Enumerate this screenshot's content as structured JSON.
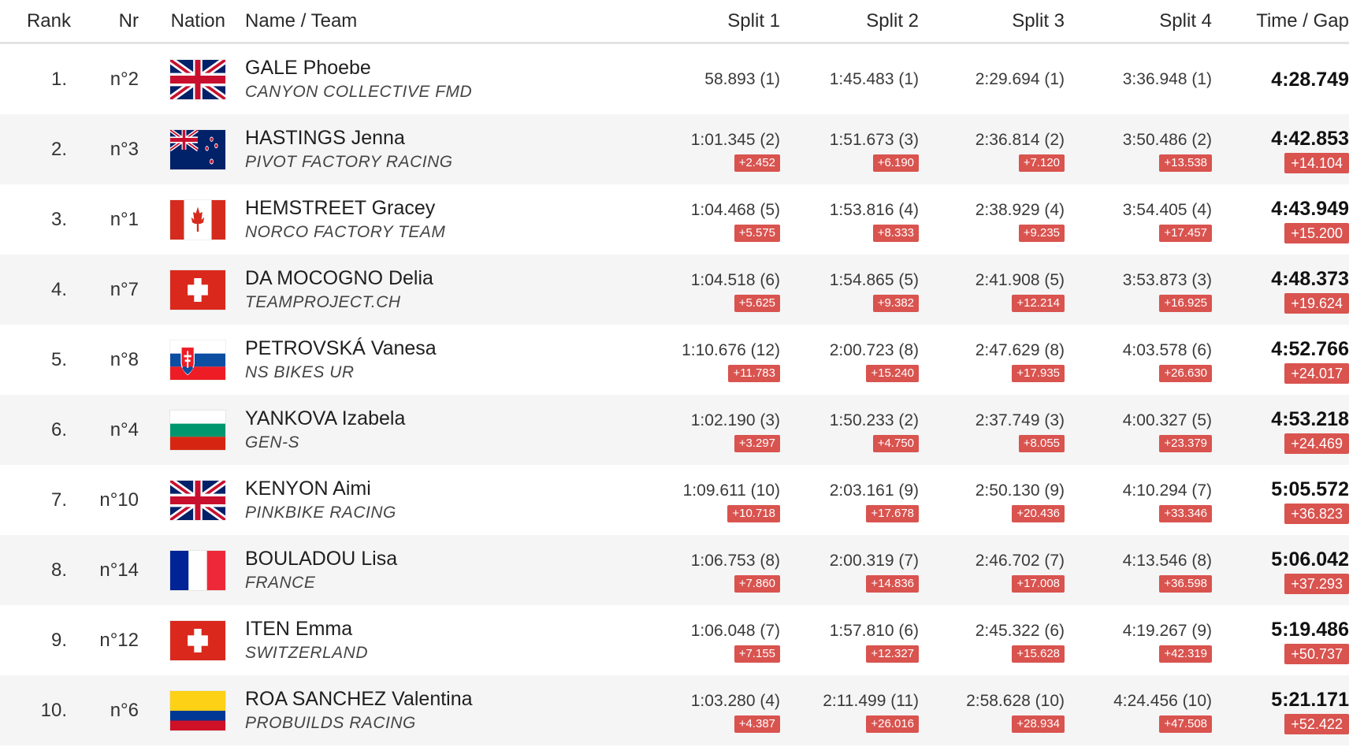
{
  "header": {
    "rank": "Rank",
    "nr": "Nr",
    "nation": "Nation",
    "name_team": "Name / Team",
    "split1": "Split 1",
    "split2": "Split 2",
    "split3": "Split 3",
    "split4": "Split 4",
    "time_gap": "Time / Gap"
  },
  "colors": {
    "gap_badge": "#d9534f",
    "row_alt": "#f5f5f5",
    "header_border": "#e3e3e3"
  },
  "rows": [
    {
      "rank": "1.",
      "nr": "n°2",
      "flag": "gbr-flag-icon",
      "name": "GALE Phoebe",
      "team": "CANYON COLLECTIVE FMD",
      "splits": [
        {
          "time": "58.893 (1)",
          "gap": ""
        },
        {
          "time": "1:45.483 (1)",
          "gap": ""
        },
        {
          "time": "2:29.694 (1)",
          "gap": ""
        },
        {
          "time": "3:36.948 (1)",
          "gap": ""
        }
      ],
      "time": "4:28.749",
      "gap": ""
    },
    {
      "rank": "2.",
      "nr": "n°3",
      "flag": "nzl-flag-icon",
      "name": "HASTINGS Jenna",
      "team": "PIVOT FACTORY RACING",
      "splits": [
        {
          "time": "1:01.345 (2)",
          "gap": "+2.452"
        },
        {
          "time": "1:51.673 (3)",
          "gap": "+6.190"
        },
        {
          "time": "2:36.814 (2)",
          "gap": "+7.120"
        },
        {
          "time": "3:50.486 (2)",
          "gap": "+13.538"
        }
      ],
      "time": "4:42.853",
      "gap": "+14.104"
    },
    {
      "rank": "3.",
      "nr": "n°1",
      "flag": "can-flag-icon",
      "name": "HEMSTREET Gracey",
      "team": "NORCO FACTORY TEAM",
      "splits": [
        {
          "time": "1:04.468 (5)",
          "gap": "+5.575"
        },
        {
          "time": "1:53.816 (4)",
          "gap": "+8.333"
        },
        {
          "time": "2:38.929 (4)",
          "gap": "+9.235"
        },
        {
          "time": "3:54.405 (4)",
          "gap": "+17.457"
        }
      ],
      "time": "4:43.949",
      "gap": "+15.200"
    },
    {
      "rank": "4.",
      "nr": "n°7",
      "flag": "sui-flag-icon",
      "name": "DA MOCOGNO Delia",
      "team": "TEAMPROJECT.CH",
      "splits": [
        {
          "time": "1:04.518 (6)",
          "gap": "+5.625"
        },
        {
          "time": "1:54.865 (5)",
          "gap": "+9.382"
        },
        {
          "time": "2:41.908 (5)",
          "gap": "+12.214"
        },
        {
          "time": "3:53.873 (3)",
          "gap": "+16.925"
        }
      ],
      "time": "4:48.373",
      "gap": "+19.624"
    },
    {
      "rank": "5.",
      "nr": "n°8",
      "flag": "svk-flag-icon",
      "name": "PETROVSKÁ Vanesa",
      "team": "NS BIKES UR",
      "splits": [
        {
          "time": "1:10.676 (12)",
          "gap": "+11.783"
        },
        {
          "time": "2:00.723 (8)",
          "gap": "+15.240"
        },
        {
          "time": "2:47.629 (8)",
          "gap": "+17.935"
        },
        {
          "time": "4:03.578 (6)",
          "gap": "+26.630"
        }
      ],
      "time": "4:52.766",
      "gap": "+24.017"
    },
    {
      "rank": "6.",
      "nr": "n°4",
      "flag": "bul-flag-icon",
      "name": "YANKOVA Izabela",
      "team": "GEN-S",
      "splits": [
        {
          "time": "1:02.190 (3)",
          "gap": "+3.297"
        },
        {
          "time": "1:50.233 (2)",
          "gap": "+4.750"
        },
        {
          "time": "2:37.749 (3)",
          "gap": "+8.055"
        },
        {
          "time": "4:00.327 (5)",
          "gap": "+23.379"
        }
      ],
      "time": "4:53.218",
      "gap": "+24.469"
    },
    {
      "rank": "7.",
      "nr": "n°10",
      "flag": "gbr-flag-icon",
      "name": "KENYON Aimi",
      "team": "PINKBIKE RACING",
      "splits": [
        {
          "time": "1:09.611 (10)",
          "gap": "+10.718"
        },
        {
          "time": "2:03.161 (9)",
          "gap": "+17.678"
        },
        {
          "time": "2:50.130 (9)",
          "gap": "+20.436"
        },
        {
          "time": "4:10.294 (7)",
          "gap": "+33.346"
        }
      ],
      "time": "5:05.572",
      "gap": "+36.823"
    },
    {
      "rank": "8.",
      "nr": "n°14",
      "flag": "fra-flag-icon",
      "name": "BOULADOU Lisa",
      "team": "FRANCE",
      "splits": [
        {
          "time": "1:06.753 (8)",
          "gap": "+7.860"
        },
        {
          "time": "2:00.319 (7)",
          "gap": "+14.836"
        },
        {
          "time": "2:46.702 (7)",
          "gap": "+17.008"
        },
        {
          "time": "4:13.546 (8)",
          "gap": "+36.598"
        }
      ],
      "time": "5:06.042",
      "gap": "+37.293"
    },
    {
      "rank": "9.",
      "nr": "n°12",
      "flag": "sui-flag-icon",
      "name": "ITEN Emma",
      "team": "SWITZERLAND",
      "splits": [
        {
          "time": "1:06.048 (7)",
          "gap": "+7.155"
        },
        {
          "time": "1:57.810 (6)",
          "gap": "+12.327"
        },
        {
          "time": "2:45.322 (6)",
          "gap": "+15.628"
        },
        {
          "time": "4:19.267 (9)",
          "gap": "+42.319"
        }
      ],
      "time": "5:19.486",
      "gap": "+50.737"
    },
    {
      "rank": "10.",
      "nr": "n°6",
      "flag": "col-flag-icon",
      "name": "ROA SANCHEZ Valentina",
      "team": "PROBUILDS RACING",
      "splits": [
        {
          "time": "1:03.280 (4)",
          "gap": "+4.387"
        },
        {
          "time": "2:11.499 (11)",
          "gap": "+26.016"
        },
        {
          "time": "2:58.628 (10)",
          "gap": "+28.934"
        },
        {
          "time": "4:24.456 (10)",
          "gap": "+47.508"
        }
      ],
      "time": "5:21.171",
      "gap": "+52.422"
    }
  ]
}
